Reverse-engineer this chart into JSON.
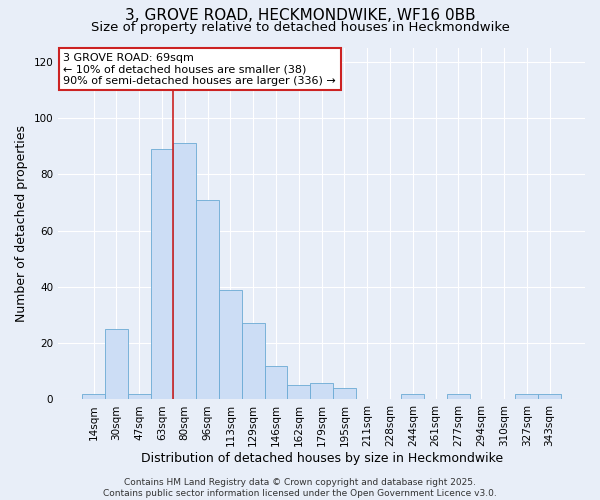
{
  "title": "3, GROVE ROAD, HECKMONDWIKE, WF16 0BB",
  "subtitle": "Size of property relative to detached houses in Heckmondwike",
  "xlabel": "Distribution of detached houses by size in Heckmondwike",
  "ylabel": "Number of detached properties",
  "bar_labels": [
    "14sqm",
    "30sqm",
    "47sqm",
    "63sqm",
    "80sqm",
    "96sqm",
    "113sqm",
    "129sqm",
    "146sqm",
    "162sqm",
    "179sqm",
    "195sqm",
    "211sqm",
    "228sqm",
    "244sqm",
    "261sqm",
    "277sqm",
    "294sqm",
    "310sqm",
    "327sqm",
    "343sqm"
  ],
  "bar_values": [
    2,
    25,
    2,
    89,
    91,
    71,
    39,
    27,
    12,
    5,
    6,
    4,
    0,
    0,
    2,
    0,
    2,
    0,
    0,
    2,
    2
  ],
  "bar_color": "#ccddf5",
  "bar_edge_color": "#6aaad4",
  "ylim": [
    0,
    125
  ],
  "yticks": [
    0,
    20,
    40,
    60,
    80,
    100,
    120
  ],
  "vline_x_index": 3.5,
  "vline_color": "#cc2222",
  "annotation_title": "3 GROVE ROAD: 69sqm",
  "annotation_line1": "← 10% of detached houses are smaller (38)",
  "annotation_line2": "90% of semi-detached houses are larger (336) →",
  "footer_line1": "Contains HM Land Registry data © Crown copyright and database right 2025.",
  "footer_line2": "Contains public sector information licensed under the Open Government Licence v3.0.",
  "background_color": "#e8eef8",
  "plot_background_color": "#e8eef8",
  "grid_color": "#ffffff",
  "title_fontsize": 11,
  "subtitle_fontsize": 9.5,
  "axis_label_fontsize": 9,
  "tick_fontsize": 7.5,
  "annotation_fontsize": 8,
  "footer_fontsize": 6.5
}
